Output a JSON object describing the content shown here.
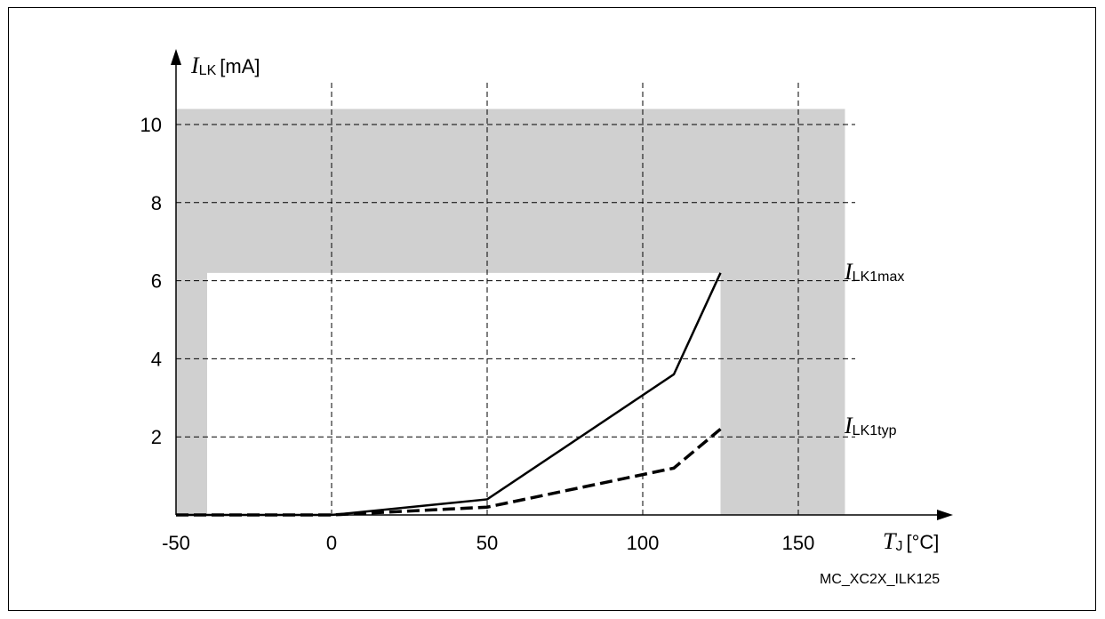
{
  "chart_data": {
    "type": "line",
    "xlim": [
      -50,
      165
    ],
    "ylim": [
      0,
      10.4
    ],
    "x_ticks": [
      -50,
      0,
      50,
      100,
      150
    ],
    "y_ticks": [
      2,
      4,
      6,
      8,
      10
    ],
    "grid": true,
    "xlabel": {
      "symbol": "T",
      "subscript": "J",
      "unit": "[°C]"
    },
    "ylabel": {
      "symbol": "I",
      "subscript": "LK",
      "unit": "[mA]"
    },
    "series": [
      {
        "name": "ILK1max",
        "style": "solid",
        "x": [
          -50,
          0,
          50,
          110,
          125
        ],
        "y": [
          0,
          0,
          0.4,
          3.6,
          6.2
        ]
      },
      {
        "name": "ILK1typ",
        "style": "dashed",
        "x": [
          -50,
          0,
          50,
          110,
          125
        ],
        "y": [
          0,
          0,
          0.2,
          1.2,
          2.2
        ]
      }
    ],
    "annotations": [
      {
        "symbol": "I",
        "subscript": "LK1max",
        "y": 6.2
      },
      {
        "symbol": "I",
        "subscript": "LK1typ",
        "y": 2.2
      }
    ],
    "shaded_region": {
      "outer": {
        "x": [
          -50,
          165
        ],
        "y": [
          0,
          10.4
        ]
      },
      "inner_clear": {
        "x": [
          -40,
          125
        ],
        "y": [
          0,
          6.2
        ]
      }
    },
    "colors": {
      "shade": "#d0d0d0",
      "line": "#000000",
      "grid": "#000000"
    }
  },
  "figure_id": "MC_XC2X_ILK125"
}
